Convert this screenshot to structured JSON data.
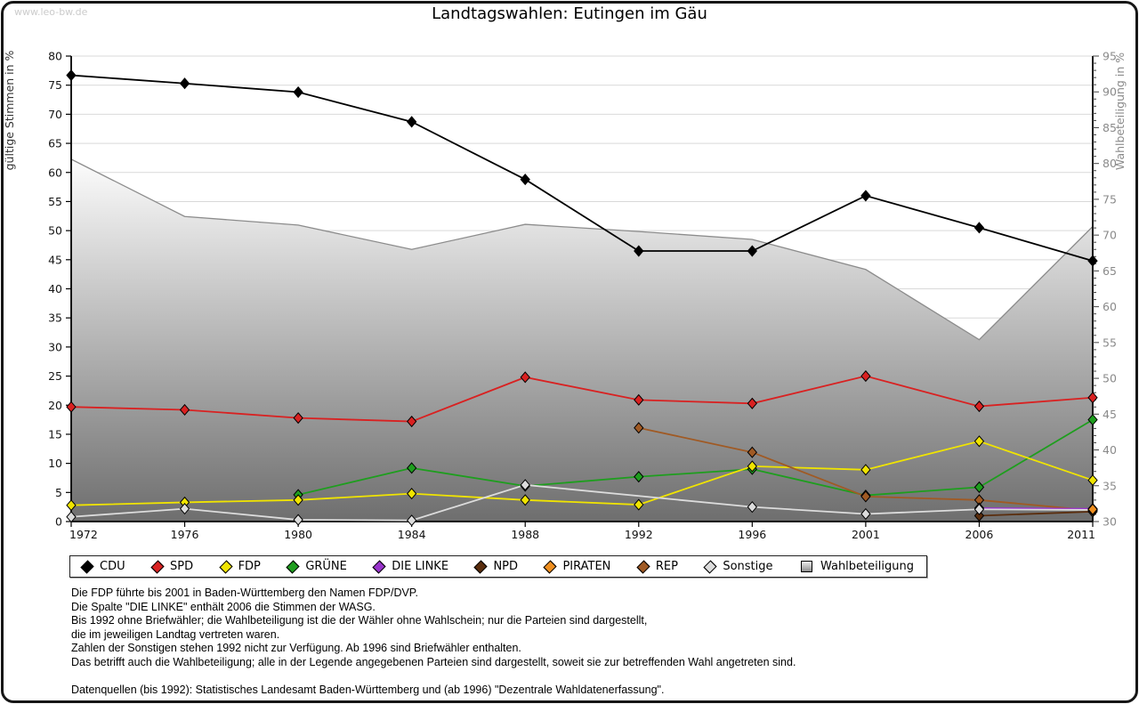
{
  "window": {
    "watermark": "www.leo-bw.de"
  },
  "chart_data": {
    "type": "line",
    "title": "Landtagswahlen: Eutingen im Gäu",
    "categories": [
      "1972",
      "1976",
      "1980",
      "1984",
      "1988",
      "1992",
      "1996",
      "2001",
      "2006",
      "2011"
    ],
    "left_axis": {
      "label": "gültige Stimmen in %",
      "min": 0,
      "max": 80,
      "tick_step": 5
    },
    "right_axis": {
      "label": "Wahlbeteiligung in %",
      "min": 30,
      "max": 95,
      "tick_step": 5,
      "minor_tick_step": 1
    },
    "grid": true,
    "legend_position": "bottom",
    "series": [
      {
        "name": "CDU",
        "color": "#000000",
        "axis": "left",
        "values": [
          76.7,
          75.3,
          73.8,
          68.7,
          58.8,
          46.5,
          46.5,
          56.0,
          50.5,
          44.8
        ]
      },
      {
        "name": "SPD",
        "color": "#d92121",
        "axis": "left",
        "values": [
          19.7,
          19.2,
          17.8,
          17.2,
          24.8,
          20.9,
          20.3,
          25.0,
          19.8,
          21.3
        ]
      },
      {
        "name": "FDP",
        "color": "#f0e400",
        "axis": "left",
        "values": [
          2.8,
          3.3,
          3.7,
          4.8,
          3.7,
          2.9,
          9.5,
          8.9,
          13.8,
          7.1
        ]
      },
      {
        "name": "GRÜNE",
        "color": "#1e9e1e",
        "axis": "left",
        "values": [
          null,
          null,
          4.6,
          9.2,
          6.1,
          7.7,
          9.0,
          4.5,
          5.9,
          17.5
        ]
      },
      {
        "name": "DIE LINKE",
        "color": "#9933cc",
        "axis": "left",
        "values": [
          null,
          null,
          null,
          null,
          null,
          null,
          null,
          null,
          2.3,
          2.2
        ]
      },
      {
        "name": "NPD",
        "color": "#5a2d0d",
        "axis": "left",
        "values": [
          null,
          null,
          null,
          null,
          null,
          null,
          null,
          null,
          1.0,
          1.7
        ]
      },
      {
        "name": "PIRATEN",
        "color": "#ef8f1f",
        "axis": "left",
        "values": [
          null,
          null,
          null,
          null,
          null,
          null,
          null,
          null,
          null,
          2.1
        ]
      },
      {
        "name": "REP",
        "color": "#a05a24",
        "axis": "left",
        "values": [
          null,
          null,
          null,
          null,
          null,
          16.1,
          11.9,
          4.3,
          3.7,
          1.9
        ]
      },
      {
        "name": "Sonstige",
        "color": "#dcdcdc",
        "axis": "left",
        "values": [
          0.8,
          2.2,
          0.3,
          0.2,
          6.3,
          null,
          2.5,
          1.3,
          2.1,
          2.0
        ]
      }
    ],
    "turnout": {
      "name": "Wahlbeteiligung",
      "axis": "right",
      "values": [
        80.6,
        72.6,
        71.4,
        68.0,
        71.5,
        70.5,
        69.4,
        65.2,
        55.4,
        71.2
      ],
      "fill_top": "#fcfcfc",
      "fill_bottom": "#6e6e6e",
      "edge_color": "#8c8c8c"
    }
  },
  "footnotes": {
    "lines": [
      "Die FDP führte bis 2001 in Baden-Württemberg den Namen FDP/DVP.",
      "Die Spalte \"DIE LINKE\" enthält 2006 die Stimmen der WASG.",
      "Bis 1992 ohne Briefwähler; die Wahlbeteiligung ist die der Wähler ohne Wahlschein; nur die Parteien sind dargestellt,",
      "die im jeweiligen Landtag vertreten waren.",
      "Zahlen der Sonstigen stehen 1992 nicht zur Verfügung. Ab 1996 sind Briefwähler enthalten.",
      "Das betrifft auch die Wahlbeteiligung; alle in der Legende angegebenen Parteien sind dargestellt, soweit sie zur betreffenden Wahl angetreten sind.",
      "",
      "Datenquellen (bis 1992): Statistisches Landesamt Baden-Württemberg und (ab 1996) \"Dezentrale Wahldatenerfassung\"."
    ]
  }
}
